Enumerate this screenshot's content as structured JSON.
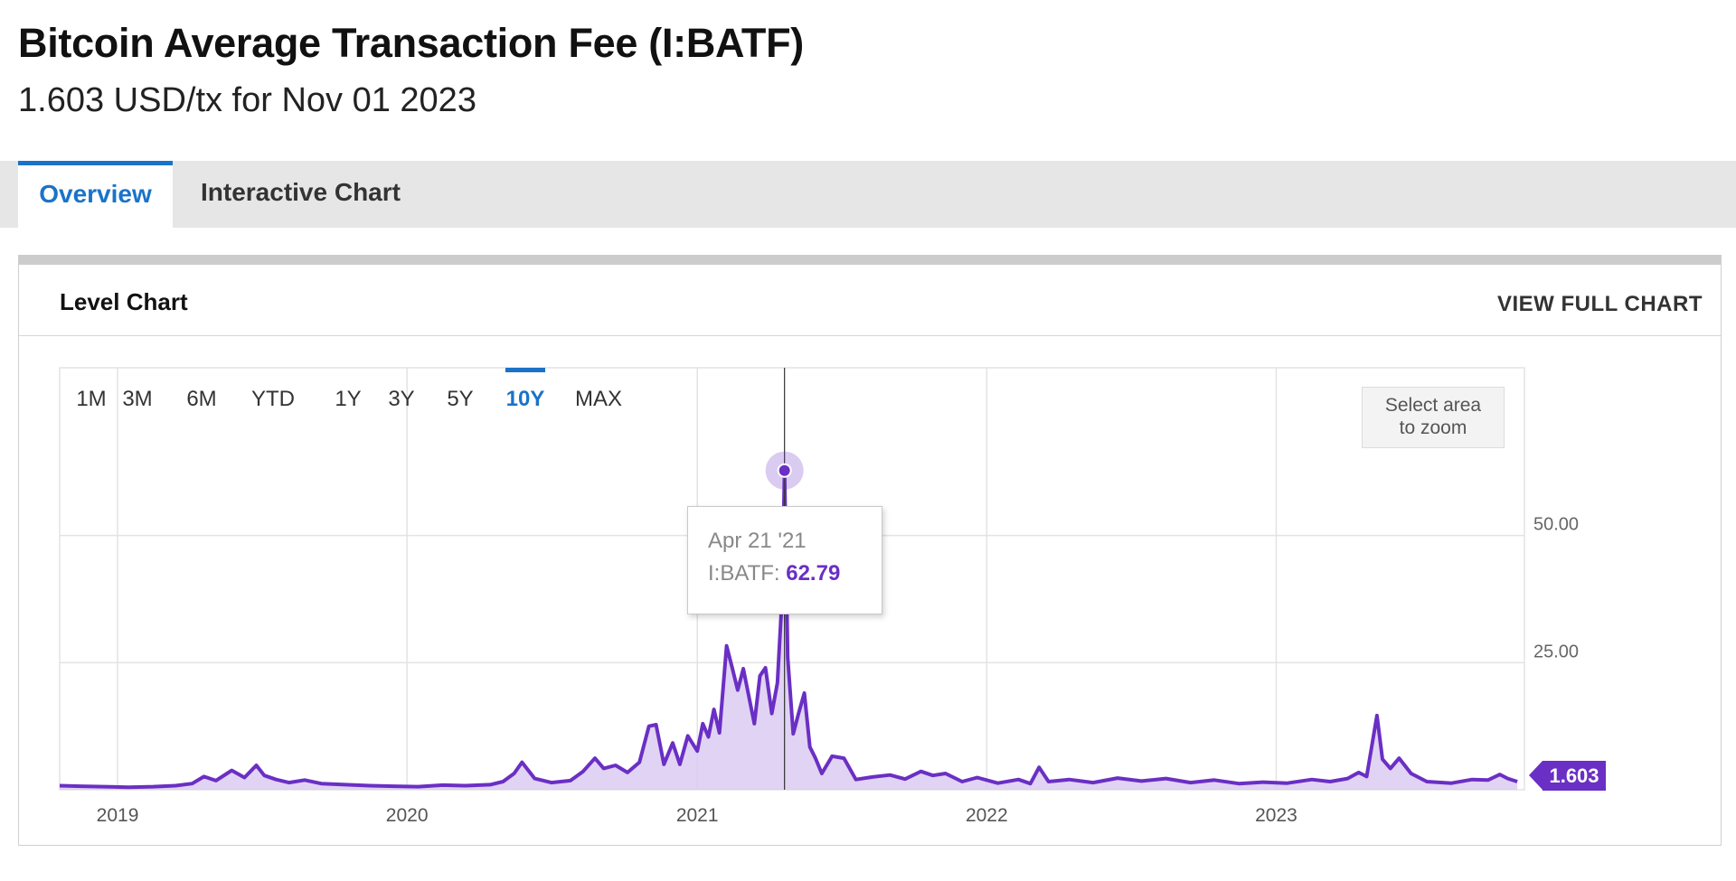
{
  "header": {
    "title": "Bitcoin Average Transaction Fee (I:BATF)",
    "subtitle": "1.603 USD/tx for Nov 01 2023"
  },
  "tabs": [
    {
      "label": "Overview",
      "active": true
    },
    {
      "label": "Interactive Chart",
      "active": false
    }
  ],
  "panel": {
    "title": "Level Chart",
    "view_full_label": "VIEW FULL CHART"
  },
  "range_buttons": [
    {
      "label": "1M",
      "active": false
    },
    {
      "label": "3M",
      "active": false
    },
    {
      "label": "6M",
      "active": false
    },
    {
      "label": "YTD",
      "active": false
    },
    {
      "label": "1Y",
      "active": false
    },
    {
      "label": "3Y",
      "active": false
    },
    {
      "label": "5Y",
      "active": false
    },
    {
      "label": "10Y",
      "active": true
    },
    {
      "label": "MAX",
      "active": false
    }
  ],
  "zoom_hint": {
    "line1": "Select area",
    "line2": "to zoom"
  },
  "tooltip": {
    "date": "Apr 21 '21",
    "series_label": "I:BATF:",
    "value": "62.79"
  },
  "last_value_label": "1.603",
  "colors": {
    "accent": "#6a2fc4",
    "fill": "#d9c8f0",
    "tab_active": "#1a73c8"
  },
  "chart_data": {
    "type": "area",
    "series_name": "I:BATF",
    "unit": "USD/tx",
    "x_tick_labels": [
      "2019",
      "2020",
      "2021",
      "2022",
      "2023"
    ],
    "y_tick_labels": [
      "25.00",
      "50.00"
    ],
    "y_ticks": [
      25,
      50
    ],
    "ylim": [
      0,
      83
    ],
    "xlim": [
      "2018-10-20",
      "2023-11-10"
    ],
    "grid": true,
    "highlight": {
      "date": "2021-04-21",
      "value": 62.79
    },
    "last": {
      "date": "2023-11-01",
      "value": 1.603
    },
    "points": [
      [
        "2018-10-20",
        0.8
      ],
      [
        "2018-11-15",
        0.7
      ],
      [
        "2018-12-15",
        0.6
      ],
      [
        "2019-01-15",
        0.5
      ],
      [
        "2019-02-15",
        0.6
      ],
      [
        "2019-03-15",
        0.8
      ],
      [
        "2019-04-05",
        1.2
      ],
      [
        "2019-04-20",
        2.6
      ],
      [
        "2019-05-05",
        1.8
      ],
      [
        "2019-05-25",
        3.8
      ],
      [
        "2019-06-10",
        2.4
      ],
      [
        "2019-06-25",
        4.8
      ],
      [
        "2019-07-05",
        2.8
      ],
      [
        "2019-07-20",
        2.0
      ],
      [
        "2019-08-05",
        1.4
      ],
      [
        "2019-08-25",
        1.9
      ],
      [
        "2019-09-15",
        1.2
      ],
      [
        "2019-10-15",
        1.0
      ],
      [
        "2019-11-15",
        0.8
      ],
      [
        "2019-12-15",
        0.7
      ],
      [
        "2020-01-15",
        0.6
      ],
      [
        "2020-02-15",
        0.9
      ],
      [
        "2020-03-15",
        0.8
      ],
      [
        "2020-04-15",
        1.0
      ],
      [
        "2020-05-01",
        1.6
      ],
      [
        "2020-05-15",
        3.2
      ],
      [
        "2020-05-25",
        5.4
      ],
      [
        "2020-06-10",
        2.2
      ],
      [
        "2020-07-01",
        1.4
      ],
      [
        "2020-07-25",
        1.8
      ],
      [
        "2020-08-10",
        3.6
      ],
      [
        "2020-08-25",
        6.2
      ],
      [
        "2020-09-05",
        4.2
      ],
      [
        "2020-09-20",
        4.8
      ],
      [
        "2020-10-05",
        3.4
      ],
      [
        "2020-10-20",
        5.4
      ],
      [
        "2020-11-01",
        12.5
      ],
      [
        "2020-11-10",
        12.8
      ],
      [
        "2020-11-20",
        5.0
      ],
      [
        "2020-12-01",
        9.2
      ],
      [
        "2020-12-10",
        5.0
      ],
      [
        "2020-12-20",
        10.6
      ],
      [
        "2021-01-01",
        7.6
      ],
      [
        "2021-01-08",
        13.0
      ],
      [
        "2021-01-15",
        10.4
      ],
      [
        "2021-01-22",
        15.8
      ],
      [
        "2021-01-29",
        11.2
      ],
      [
        "2021-02-07",
        28.3
      ],
      [
        "2021-02-14",
        24.0
      ],
      [
        "2021-02-21",
        19.6
      ],
      [
        "2021-02-28",
        23.8
      ],
      [
        "2021-03-07",
        18.4
      ],
      [
        "2021-03-14",
        13.0
      ],
      [
        "2021-03-21",
        22.4
      ],
      [
        "2021-03-28",
        24.0
      ],
      [
        "2021-04-05",
        15.0
      ],
      [
        "2021-04-12",
        21.0
      ],
      [
        "2021-04-18",
        38.0
      ],
      [
        "2021-04-21",
        62.79
      ],
      [
        "2021-04-25",
        26.0
      ],
      [
        "2021-05-02",
        11.0
      ],
      [
        "2021-05-09",
        15.2
      ],
      [
        "2021-05-16",
        19.0
      ],
      [
        "2021-05-23",
        8.4
      ],
      [
        "2021-05-30",
        6.2
      ],
      [
        "2021-06-07",
        3.2
      ],
      [
        "2021-06-20",
        6.6
      ],
      [
        "2021-07-05",
        6.2
      ],
      [
        "2021-07-20",
        2.0
      ],
      [
        "2021-08-10",
        2.5
      ],
      [
        "2021-09-01",
        2.9
      ],
      [
        "2021-09-20",
        2.1
      ],
      [
        "2021-10-10",
        3.6
      ],
      [
        "2021-10-25",
        2.8
      ],
      [
        "2021-11-10",
        3.2
      ],
      [
        "2021-12-01",
        1.6
      ],
      [
        "2021-12-20",
        2.4
      ],
      [
        "2022-01-15",
        1.3
      ],
      [
        "2022-02-10",
        2.0
      ],
      [
        "2022-02-25",
        1.2
      ],
      [
        "2022-03-08",
        4.4
      ],
      [
        "2022-03-20",
        1.6
      ],
      [
        "2022-04-15",
        2.0
      ],
      [
        "2022-05-15",
        1.4
      ],
      [
        "2022-06-15",
        2.3
      ],
      [
        "2022-07-15",
        1.7
      ],
      [
        "2022-08-15",
        2.2
      ],
      [
        "2022-09-15",
        1.4
      ],
      [
        "2022-10-15",
        1.9
      ],
      [
        "2022-11-15",
        1.2
      ],
      [
        "2022-12-15",
        1.5
      ],
      [
        "2023-01-15",
        1.3
      ],
      [
        "2023-02-15",
        2.0
      ],
      [
        "2023-03-10",
        1.6
      ],
      [
        "2023-04-01",
        2.2
      ],
      [
        "2023-04-15",
        3.4
      ],
      [
        "2023-04-25",
        2.6
      ],
      [
        "2023-05-08",
        14.6
      ],
      [
        "2023-05-15",
        6.0
      ],
      [
        "2023-05-25",
        4.2
      ],
      [
        "2023-06-05",
        6.2
      ],
      [
        "2023-06-20",
        3.2
      ],
      [
        "2023-07-10",
        1.6
      ],
      [
        "2023-08-10",
        1.3
      ],
      [
        "2023-09-05",
        2.0
      ],
      [
        "2023-09-25",
        1.9
      ],
      [
        "2023-10-10",
        3.0
      ],
      [
        "2023-10-20",
        2.2
      ],
      [
        "2023-11-01",
        1.603
      ]
    ]
  }
}
